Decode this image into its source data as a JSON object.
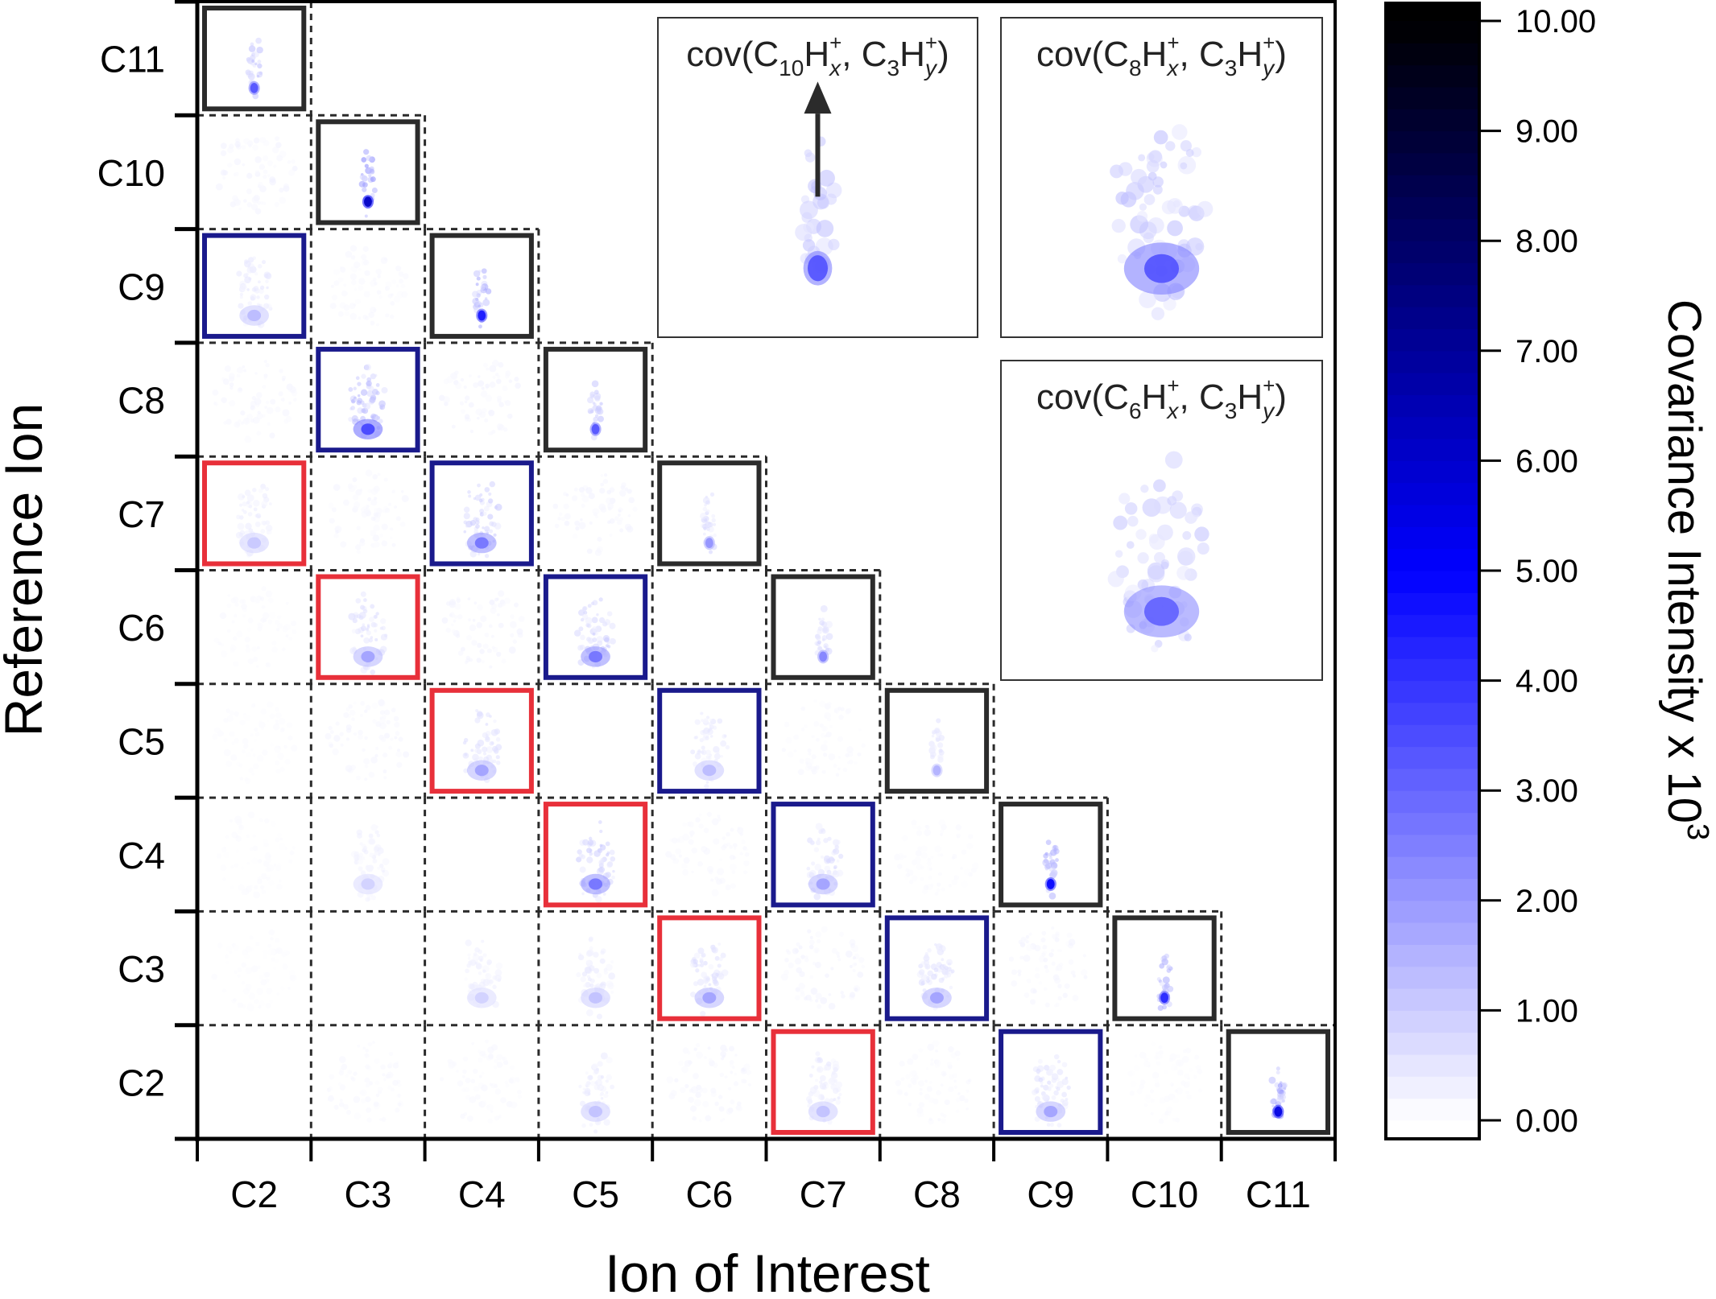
{
  "chart_data": {
    "type": "heatmap",
    "title": "",
    "xlabel": "Ion of Interest",
    "ylabel": "Reference Ion",
    "x_categories": [
      "C2",
      "C3",
      "C4",
      "C5",
      "C6",
      "C7",
      "C8",
      "C9",
      "C10",
      "C11"
    ],
    "y_categories_top_to_bottom": [
      "C11",
      "C10",
      "C9",
      "C8",
      "C7",
      "C6",
      "C5",
      "C4",
      "C3",
      "C2"
    ],
    "frame_colors": {
      "black": "#2b2b2b",
      "blue": "#1a1a8c",
      "red": "#e8303a",
      "dashed": "#2b2b2b"
    },
    "cells": [
      {
        "ref": "C11",
        "ion": "C2",
        "frame": "black",
        "peak": 0.55,
        "spread": "narrow"
      },
      {
        "ref": "C10",
        "ion": "C2",
        "frame": "none",
        "peak": 0.12,
        "spread": "diffuse"
      },
      {
        "ref": "C10",
        "ion": "C3",
        "frame": "black",
        "peak": 1.0,
        "spread": "narrow"
      },
      {
        "ref": "C9",
        "ion": "C2",
        "frame": "blue",
        "peak": 0.22,
        "spread": "wide"
      },
      {
        "ref": "C9",
        "ion": "C3",
        "frame": "none",
        "peak": 0.08,
        "spread": "diffuse"
      },
      {
        "ref": "C9",
        "ion": "C4",
        "frame": "black",
        "peak": 0.75,
        "spread": "narrow"
      },
      {
        "ref": "C8",
        "ion": "C2",
        "frame": "none",
        "peak": 0.1,
        "spread": "diffuse"
      },
      {
        "ref": "C8",
        "ion": "C3",
        "frame": "blue",
        "peak": 0.6,
        "spread": "wide"
      },
      {
        "ref": "C8",
        "ion": "C4",
        "frame": "none",
        "peak": 0.12,
        "spread": "diffuse"
      },
      {
        "ref": "C8",
        "ion": "C5",
        "frame": "black",
        "peak": 0.55,
        "spread": "narrow"
      },
      {
        "ref": "C7",
        "ion": "C2",
        "frame": "red",
        "peak": 0.18,
        "spread": "wide"
      },
      {
        "ref": "C7",
        "ion": "C3",
        "frame": "none",
        "peak": 0.1,
        "spread": "diffuse"
      },
      {
        "ref": "C7",
        "ion": "C4",
        "frame": "blue",
        "peak": 0.45,
        "spread": "wide"
      },
      {
        "ref": "C7",
        "ion": "C5",
        "frame": "none",
        "peak": 0.12,
        "spread": "diffuse"
      },
      {
        "ref": "C7",
        "ion": "C6",
        "frame": "black",
        "peak": 0.35,
        "spread": "narrow"
      },
      {
        "ref": "C6",
        "ion": "C2",
        "frame": "none",
        "peak": 0.06,
        "spread": "diffuse"
      },
      {
        "ref": "C6",
        "ion": "C3",
        "frame": "red",
        "peak": 0.3,
        "spread": "wide"
      },
      {
        "ref": "C6",
        "ion": "C4",
        "frame": "none",
        "peak": 0.12,
        "spread": "diffuse"
      },
      {
        "ref": "C6",
        "ion": "C5",
        "frame": "blue",
        "peak": 0.45,
        "spread": "wide"
      },
      {
        "ref": "C6",
        "ion": "C6",
        "frame": "empty",
        "peak": 0,
        "spread": "none"
      },
      {
        "ref": "C6",
        "ion": "C7",
        "frame": "black",
        "peak": 0.4,
        "spread": "narrow"
      },
      {
        "ref": "C5",
        "ion": "C2",
        "frame": "none",
        "peak": 0.05,
        "spread": "diffuse"
      },
      {
        "ref": "C5",
        "ion": "C3",
        "frame": "none",
        "peak": 0.1,
        "spread": "diffuse"
      },
      {
        "ref": "C5",
        "ion": "C4",
        "frame": "red",
        "peak": 0.3,
        "spread": "wide"
      },
      {
        "ref": "C5",
        "ion": "C5",
        "frame": "empty",
        "peak": 0,
        "spread": "none"
      },
      {
        "ref": "C5",
        "ion": "C6",
        "frame": "blue",
        "peak": 0.22,
        "spread": "wide"
      },
      {
        "ref": "C5",
        "ion": "C7",
        "frame": "none",
        "peak": 0.08,
        "spread": "diffuse"
      },
      {
        "ref": "C5",
        "ion": "C8",
        "frame": "black",
        "peak": 0.25,
        "spread": "narrow"
      },
      {
        "ref": "C4",
        "ion": "C2",
        "frame": "none",
        "peak": 0.05,
        "spread": "diffuse"
      },
      {
        "ref": "C4",
        "ion": "C3",
        "frame": "none",
        "peak": 0.15,
        "spread": "wide"
      },
      {
        "ref": "C4",
        "ion": "C4",
        "frame": "empty",
        "peak": 0,
        "spread": "none"
      },
      {
        "ref": "C4",
        "ion": "C5",
        "frame": "red",
        "peak": 0.45,
        "spread": "wide"
      },
      {
        "ref": "C4",
        "ion": "C6",
        "frame": "none",
        "peak": 0.08,
        "spread": "diffuse"
      },
      {
        "ref": "C4",
        "ion": "C7",
        "frame": "blue",
        "peak": 0.3,
        "spread": "wide"
      },
      {
        "ref": "C4",
        "ion": "C8",
        "frame": "none",
        "peak": 0.06,
        "spread": "diffuse"
      },
      {
        "ref": "C4",
        "ion": "C9",
        "frame": "black",
        "peak": 0.8,
        "spread": "narrow"
      },
      {
        "ref": "C3",
        "ion": "C2",
        "frame": "none",
        "peak": 0.04,
        "spread": "diffuse"
      },
      {
        "ref": "C3",
        "ion": "C3",
        "frame": "empty",
        "peak": 0,
        "spread": "none"
      },
      {
        "ref": "C3",
        "ion": "C4",
        "frame": "none",
        "peak": 0.15,
        "spread": "wide"
      },
      {
        "ref": "C3",
        "ion": "C5",
        "frame": "none",
        "peak": 0.2,
        "spread": "wide"
      },
      {
        "ref": "C3",
        "ion": "C6",
        "frame": "red",
        "peak": 0.3,
        "spread": "wide"
      },
      {
        "ref": "C3",
        "ion": "C7",
        "frame": "none",
        "peak": 0.12,
        "spread": "diffuse"
      },
      {
        "ref": "C3",
        "ion": "C8",
        "frame": "blue",
        "peak": 0.3,
        "spread": "wide"
      },
      {
        "ref": "C3",
        "ion": "C9",
        "frame": "none",
        "peak": 0.1,
        "spread": "diffuse"
      },
      {
        "ref": "C3",
        "ion": "C10",
        "frame": "black",
        "peak": 0.7,
        "spread": "narrow"
      },
      {
        "ref": "C2",
        "ion": "C2",
        "frame": "empty",
        "peak": 0,
        "spread": "none"
      },
      {
        "ref": "C2",
        "ion": "C3",
        "frame": "none",
        "peak": 0.08,
        "spread": "diffuse"
      },
      {
        "ref": "C2",
        "ion": "C4",
        "frame": "none",
        "peak": 0.08,
        "spread": "diffuse"
      },
      {
        "ref": "C2",
        "ion": "C5",
        "frame": "none",
        "peak": 0.2,
        "spread": "wide"
      },
      {
        "ref": "C2",
        "ion": "C6",
        "frame": "none",
        "peak": 0.1,
        "spread": "diffuse"
      },
      {
        "ref": "C2",
        "ion": "C7",
        "frame": "red",
        "peak": 0.2,
        "spread": "wide"
      },
      {
        "ref": "C2",
        "ion": "C8",
        "frame": "none",
        "peak": 0.08,
        "spread": "diffuse"
      },
      {
        "ref": "C2",
        "ion": "C9",
        "frame": "blue",
        "peak": 0.3,
        "spread": "wide"
      },
      {
        "ref": "C2",
        "ion": "C10",
        "frame": "none",
        "peak": 0.05,
        "spread": "diffuse"
      },
      {
        "ref": "C2",
        "ion": "C11",
        "frame": "black",
        "peak": 0.9,
        "spread": "narrow"
      }
    ],
    "colorbar": {
      "label": "Covariance Intensity x 10",
      "label_superscript": "3",
      "range": [
        0,
        10
      ],
      "ticks": [
        "0.00",
        "1.00",
        "2.00",
        "3.00",
        "4.00",
        "5.00",
        "6.00",
        "7.00",
        "8.00",
        "9.00",
        "10.00"
      ],
      "tick_values": [
        0,
        1,
        2,
        3,
        4,
        5,
        6,
        7,
        8,
        9,
        10
      ],
      "colormap": [
        "#ffffff",
        "#0000ff",
        "#000000"
      ],
      "colormap_stops": [
        0,
        5,
        10
      ]
    },
    "insets": [
      {
        "id": "c10-c3",
        "title_parts": [
          "cov(C",
          "10",
          "H",
          "x",
          "+",
          ", C",
          "3",
          "H",
          "y",
          "+",
          ")"
        ],
        "peak": 0.55,
        "spread": "narrow",
        "arrow": true
      },
      {
        "id": "c8-c3",
        "title_parts": [
          "cov(C",
          "8",
          "H",
          "x",
          "+",
          ", C",
          "3",
          "H",
          "y",
          "+",
          ")"
        ],
        "peak": 0.55,
        "spread": "wide",
        "arrow": false
      },
      {
        "id": "c6-c3",
        "title_parts": [
          "cov(C",
          "6",
          "H",
          "x",
          "+",
          ", C",
          "3",
          "H",
          "y",
          "+",
          ")"
        ],
        "peak": 0.5,
        "spread": "wide",
        "arrow": false
      }
    ]
  }
}
